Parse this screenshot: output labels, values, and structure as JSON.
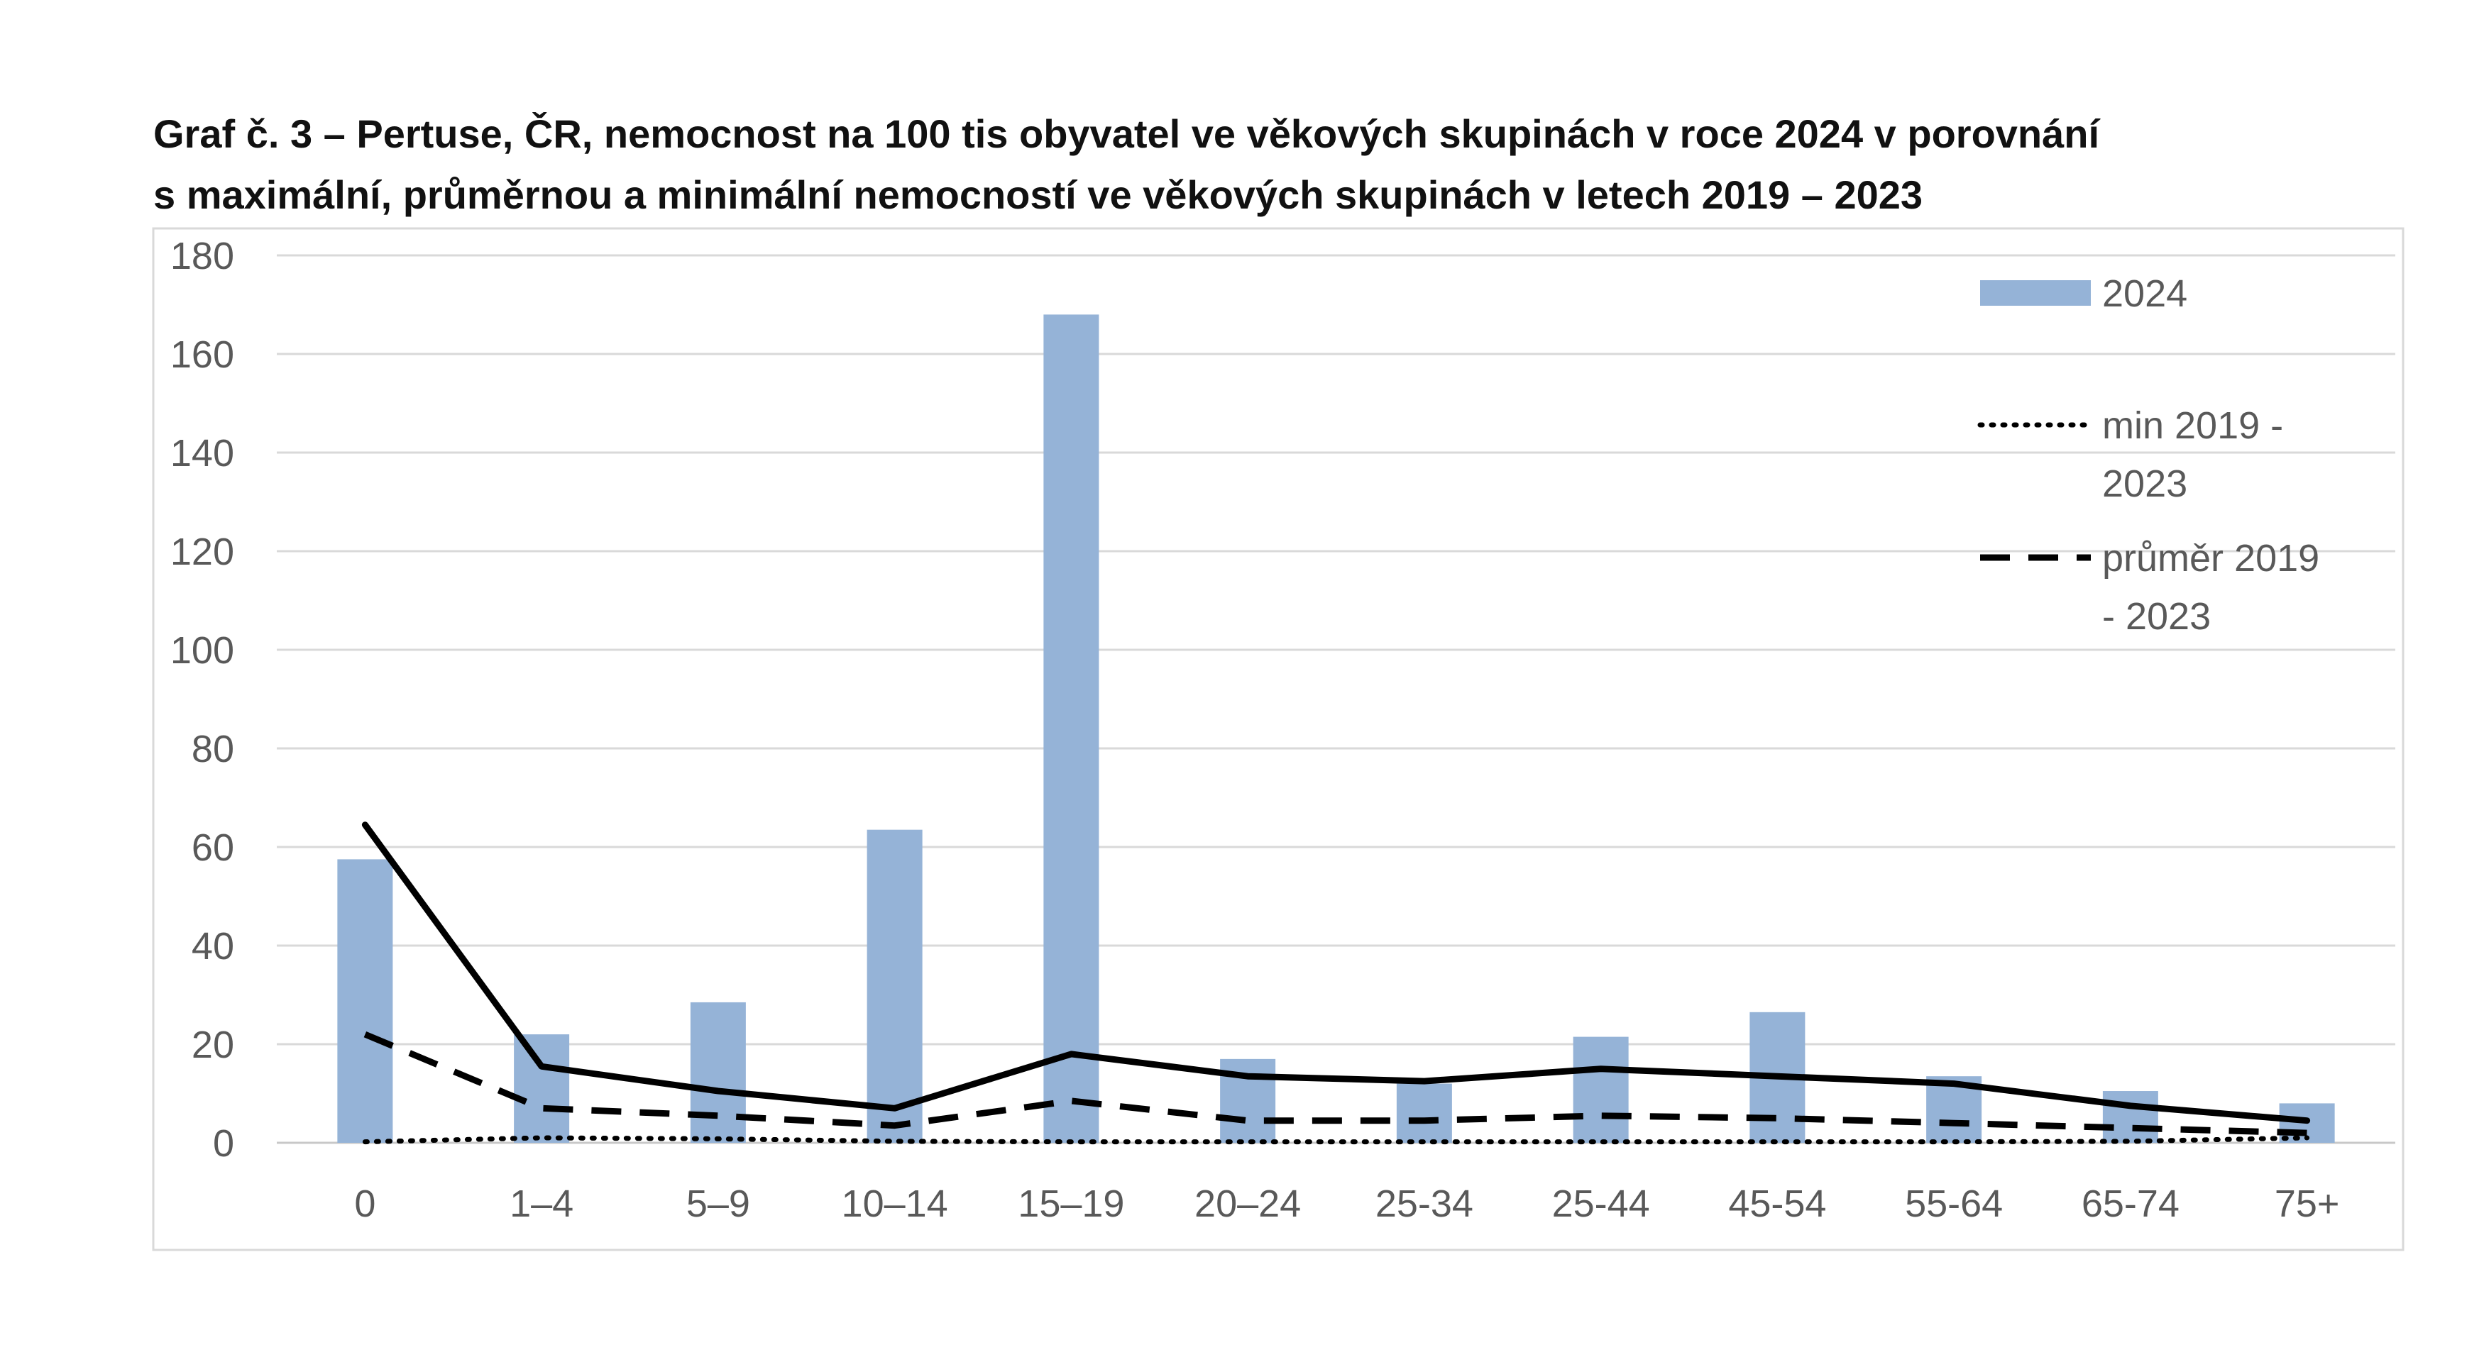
{
  "chart_data": {
    "type": "bar",
    "title_line1": "Graf č. 3 – Pertuse, ČR, nemocnost na 100 tis obyvatel ve věkových skupinách v roce 2024 v porovnání",
    "title_line2": "s maximální, průměrnou a minimální nemocností ve věkových skupinách v  letech 2019 – 2023",
    "categories": [
      "0",
      "1–4",
      "5–9",
      "10–14",
      "15–19",
      "20–24",
      "25-34",
      "25-44",
      "45-54",
      "55-64",
      "65-74",
      "75+"
    ],
    "ylim": [
      0,
      180
    ],
    "yticks": [
      "0",
      "20",
      "40",
      "60",
      "80",
      "100",
      "120",
      "140",
      "160",
      "180"
    ],
    "grid": true,
    "legend_position": "right",
    "series": [
      {
        "name": "2024",
        "kind": "bar",
        "color": "#95b3d7",
        "values": [
          57.5,
          22,
          28.5,
          63.5,
          168,
          17,
          12,
          21.5,
          26.5,
          13.5,
          10.5,
          8
        ]
      },
      {
        "name": "",
        "kind": "line",
        "style": "solid",
        "color": "#000000",
        "values": [
          64.5,
          15.5,
          10.5,
          7,
          18,
          13.5,
          12.5,
          15,
          13.5,
          12,
          7.5,
          4.5
        ]
      },
      {
        "name": "min 2019 - 2023",
        "kind": "line",
        "style": "dotted",
        "color": "#000000",
        "values": [
          0.2,
          1,
          0.8,
          0.3,
          0.2,
          0.2,
          0.2,
          0.2,
          0.2,
          0.2,
          0.3,
          1
        ]
      },
      {
        "name": "průměr 2019 - 2023",
        "kind": "line",
        "style": "dashed",
        "color": "#000000",
        "values": [
          22,
          7,
          5.5,
          3.5,
          8.5,
          4.5,
          4.5,
          5.5,
          5,
          4,
          3,
          2
        ]
      }
    ],
    "legend": [
      {
        "series": 0,
        "lines": [
          "2024"
        ]
      },
      {
        "series": 2,
        "lines": [
          "min 2019 -",
          "2023"
        ]
      },
      {
        "series": 3,
        "lines": [
          "průměr 2019",
          "- 2023"
        ]
      }
    ]
  }
}
